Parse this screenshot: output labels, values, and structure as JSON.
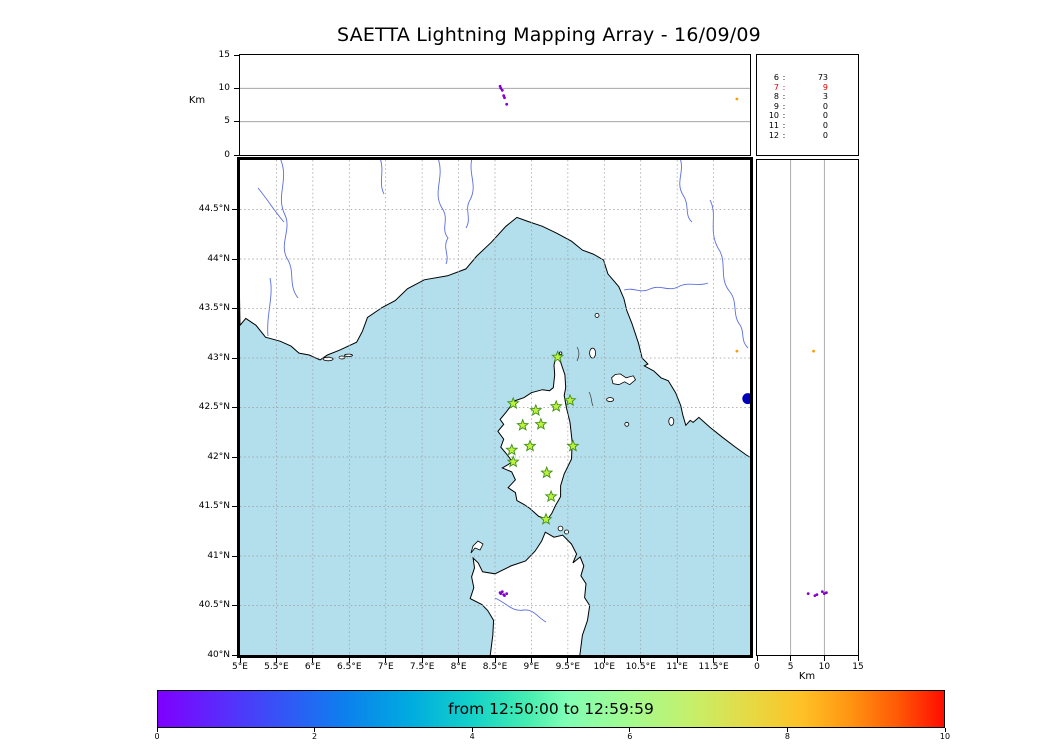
{
  "title": "SAETTA Lightning Mapping Array - 16/09/09",
  "labels": {
    "km_left": "Km",
    "km_right": "Km"
  },
  "colors": {
    "sea": "#b3dfed",
    "land": "#ffffff",
    "coast": "#000000",
    "river": "#5b6ee1",
    "grid": "#999999",
    "station_fill": "#bdf23c",
    "station_edge": "#3f8f1a",
    "highlight_text": "#dd0000",
    "large_marker": "#0000bb"
  },
  "alt_axis": {
    "max": 15,
    "gridlines": [
      5,
      10
    ],
    "ticks": [
      {
        "label": "0",
        "value": 0
      },
      {
        "label": "5",
        "value": 5
      },
      {
        "label": "10",
        "value": 10
      },
      {
        "label": "15",
        "value": 15
      }
    ]
  },
  "map": {
    "lon_min": 5,
    "lon_max": 12,
    "lat_min": 40,
    "lat_max": 45,
    "lon_ticks": [
      {
        "label": "5°E",
        "value": 5
      },
      {
        "label": "5.5°E",
        "value": 5.5
      },
      {
        "label": "6°E",
        "value": 6
      },
      {
        "label": "6.5°E",
        "value": 6.5
      },
      {
        "label": "7°E",
        "value": 7
      },
      {
        "label": "7.5°E",
        "value": 7.5
      },
      {
        "label": "8°E",
        "value": 8
      },
      {
        "label": "8.5°E",
        "value": 8.5
      },
      {
        "label": "9°E",
        "value": 9
      },
      {
        "label": "9.5°E",
        "value": 9.5
      },
      {
        "label": "10°E",
        "value": 10
      },
      {
        "label": "10.5°E",
        "value": 10.5
      },
      {
        "label": "11°E",
        "value": 11
      },
      {
        "label": "11.5°E",
        "value": 11.5
      }
    ],
    "lat_ticks": [
      {
        "label": "44.5°N",
        "value": 44.5
      },
      {
        "label": "44°N",
        "value": 44
      },
      {
        "label": "43.5°N",
        "value": 43.5
      },
      {
        "label": "43°N",
        "value": 43
      },
      {
        "label": "42.5°N",
        "value": 42.5
      },
      {
        "label": "42°N",
        "value": 42
      },
      {
        "label": "41.5°N",
        "value": 41.5
      },
      {
        "label": "41°N",
        "value": 41
      },
      {
        "label": "40.5°N",
        "value": 40.5
      },
      {
        "label": "40°N",
        "value": 40
      }
    ]
  },
  "stats": {
    "rows": [
      {
        "key": "6",
        "sep": ":",
        "value": "73",
        "highlight": false
      },
      {
        "key": "7",
        "sep": ":",
        "value": "9",
        "highlight": true
      },
      {
        "key": "8",
        "sep": ":",
        "value": "3",
        "highlight": false
      },
      {
        "key": "9",
        "sep": ":",
        "value": "0",
        "highlight": false
      },
      {
        "key": "10",
        "sep": ":",
        "value": "0",
        "highlight": false
      },
      {
        "key": "11",
        "sep": ":",
        "value": "0",
        "highlight": false
      },
      {
        "key": "12",
        "sep": ":",
        "value": "0",
        "highlight": false
      }
    ]
  },
  "colorbar": {
    "label": "from 12:50:00 to 12:59:59",
    "min": 0,
    "max": 10,
    "ticks": [
      {
        "label": "0",
        "value": 0
      },
      {
        "label": "2",
        "value": 2
      },
      {
        "label": "4",
        "value": 4
      },
      {
        "label": "6",
        "value": 6
      },
      {
        "label": "8",
        "value": 8
      },
      {
        "label": "10",
        "value": 10
      }
    ],
    "gradient": [
      {
        "color": "#7f00ff",
        "at": 0
      },
      {
        "color": "#5a2bfc",
        "at": 8
      },
      {
        "color": "#3356f6",
        "at": 16
      },
      {
        "color": "#0c81ee",
        "at": 24
      },
      {
        "color": "#00abdf",
        "at": 32
      },
      {
        "color": "#14d2c8",
        "at": 40
      },
      {
        "color": "#45edb1",
        "at": 47
      },
      {
        "color": "#80ffb4",
        "at": 52
      },
      {
        "color": "#a4fb8f",
        "at": 60
      },
      {
        "color": "#c6ef6a",
        "at": 68
      },
      {
        "color": "#e5da45",
        "at": 75
      },
      {
        "color": "#ffc125",
        "at": 82
      },
      {
        "color": "#ff9512",
        "at": 88
      },
      {
        "color": "#ff5a06",
        "at": 94
      },
      {
        "color": "#ff0d00",
        "at": 100
      }
    ]
  },
  "chart_data": {
    "type": "scatter",
    "title": "SAETTA Lightning Mapping Array - 16/09/09",
    "time_window": {
      "from": "12:50:00",
      "to": "12:59:59"
    },
    "panels": {
      "top": {
        "x": "longitude_deg_E",
        "y": "altitude_km",
        "xlim": [
          5,
          12
        ],
        "ylim": [
          0,
          15
        ],
        "gridlines_km": [
          5,
          10
        ]
      },
      "map": {
        "x": "longitude_deg_E",
        "y": "latitude_deg_N",
        "xlim": [
          5,
          12
        ],
        "ylim": [
          40,
          45
        ],
        "grid_step_deg": 0.5
      },
      "right": {
        "x": "altitude_km",
        "y": "latitude_deg_N",
        "xlim": [
          0,
          15
        ],
        "ylim": [
          40,
          45
        ],
        "gridlines_km": [
          5,
          10
        ]
      },
      "colorbar": {
        "range": [
          0,
          10
        ],
        "label": "from 12:50:00 to 12:59:59"
      }
    },
    "source_counts_by_stations": [
      {
        "stations": 6,
        "count": 73
      },
      {
        "stations": 7,
        "count": 9
      },
      {
        "stations": 8,
        "count": 3
      },
      {
        "stations": 9,
        "count": 0
      },
      {
        "stations": 10,
        "count": 0
      },
      {
        "stations": 11,
        "count": 0
      },
      {
        "stations": 12,
        "count": 0
      }
    ],
    "lma_stations_lon_lat": [
      [
        9.36,
        43.01
      ],
      [
        8.75,
        42.54
      ],
      [
        9.06,
        42.47
      ],
      [
        9.34,
        42.51
      ],
      [
        9.53,
        42.57
      ],
      [
        8.88,
        42.32
      ],
      [
        9.13,
        42.33
      ],
      [
        8.98,
        42.11
      ],
      [
        9.57,
        42.11
      ],
      [
        8.73,
        42.07
      ],
      [
        8.75,
        41.95
      ],
      [
        9.21,
        41.84
      ],
      [
        9.27,
        41.6
      ],
      [
        9.2,
        41.37
      ]
    ],
    "sources": [
      {
        "lon": 8.57,
        "lat": 40.63,
        "alt_km": 10.3,
        "color": "#7d00cc"
      },
      {
        "lon": 8.58,
        "lat": 40.62,
        "alt_km": 10.0,
        "color": "#7d00cc"
      },
      {
        "lon": 8.6,
        "lat": 40.64,
        "alt_km": 9.7,
        "color": "#8a00cc"
      },
      {
        "lon": 8.62,
        "lat": 40.61,
        "alt_km": 8.9,
        "color": "#7d00cc"
      },
      {
        "lon": 8.63,
        "lat": 40.6,
        "alt_km": 8.6,
        "color": "#9000d0"
      },
      {
        "lon": 8.66,
        "lat": 40.62,
        "alt_km": 7.6,
        "color": "#7d00cc"
      },
      {
        "lon": 11.82,
        "lat": 43.07,
        "alt_km": 8.4,
        "color": "#ff9d00"
      }
    ],
    "large_marker": {
      "lon": 11.97,
      "lat": 42.59,
      "color": "#0000bb"
    }
  }
}
